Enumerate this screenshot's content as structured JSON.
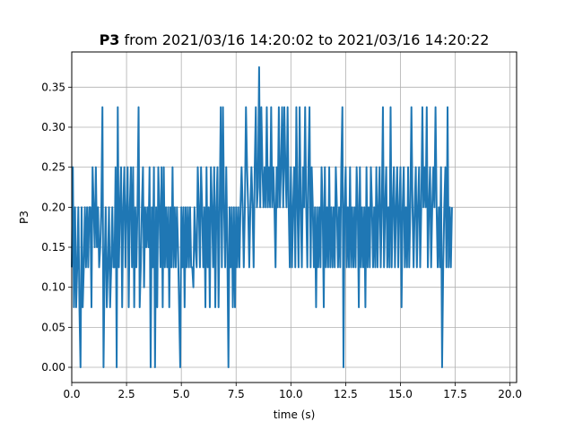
{
  "chart_data": {
    "type": "line",
    "title_bold": "P3",
    "title_rest": " from 2021/03/16 14:20:02 to 2021/03/16 14:20:22",
    "xlabel": "time (s)",
    "ylabel": "P3",
    "xlim": [
      0,
      20.3
    ],
    "ylim": [
      -0.019,
      0.394
    ],
    "x_ticks": [
      0,
      2.5,
      5,
      7.5,
      10,
      12.5,
      15,
      17.5,
      20
    ],
    "x_tick_labels": [
      "0.0",
      "2.5",
      "5.0",
      "7.5",
      "10.0",
      "12.5",
      "15.0",
      "17.5",
      "20.0"
    ],
    "y_ticks": [
      0,
      0.05,
      0.1,
      0.15,
      0.2,
      0.25,
      0.3,
      0.35
    ],
    "y_tick_labels": [
      "0.00",
      "0.05",
      "0.10",
      "0.15",
      "0.20",
      "0.25",
      "0.30",
      "0.35"
    ],
    "grid": true,
    "line_color": "#1f77b4",
    "series": [
      {
        "dt": 0.05,
        "values": [
          0.125,
          0.25,
          0.075,
          0.2,
          0.075,
          0.125,
          0.2,
          0.075,
          0.0,
          0.2,
          0.075,
          0.125,
          0.2,
          0.125,
          0.2,
          0.125,
          0.2,
          0.2,
          0.075,
          0.25,
          0.2,
          0.15,
          0.25,
          0.15,
          0.2,
          0.125,
          0.15,
          0.2,
          0.325,
          0.0,
          0.125,
          0.2,
          0.075,
          0.125,
          0.2,
          0.075,
          0.125,
          0.2,
          0.125,
          0.125,
          0.25,
          0.0,
          0.325,
          0.125,
          0.2,
          0.25,
          0.075,
          0.2,
          0.25,
          0.125,
          0.2,
          0.25,
          0.075,
          0.2,
          0.25,
          0.125,
          0.25,
          0.075,
          0.2,
          0.125,
          0.2,
          0.325,
          0.075,
          0.125,
          0.2,
          0.25,
          0.1,
          0.2,
          0.15,
          0.2,
          0.15,
          0.25,
          0.0,
          0.2,
          0.125,
          0.25,
          0.0,
          0.2,
          0.075,
          0.25,
          0.2,
          0.125,
          0.25,
          0.075,
          0.25,
          0.125,
          0.2,
          0.125,
          0.2,
          0.075,
          0.2,
          0.125,
          0.25,
          0.125,
          0.2,
          0.125,
          0.2,
          0.15,
          0.075,
          0.0,
          0.2,
          0.125,
          0.2,
          0.075,
          0.2,
          0.125,
          0.2,
          0.125,
          0.2,
          0.125,
          0.125,
          0.1,
          0.2,
          0.15,
          0.125,
          0.25,
          0.2,
          0.125,
          0.25,
          0.2,
          0.125,
          0.2,
          0.075,
          0.25,
          0.125,
          0.2,
          0.075,
          0.25,
          0.2,
          0.125,
          0.25,
          0.075,
          0.2,
          0.25,
          0.075,
          0.2,
          0.325,
          0.125,
          0.325,
          0.2,
          0.125,
          0.25,
          0.15,
          0.0,
          0.2,
          0.125,
          0.2,
          0.075,
          0.2,
          0.075,
          0.2,
          0.125,
          0.2,
          0.125,
          0.2,
          0.25,
          0.2,
          0.125,
          0.2,
          0.325,
          0.25,
          0.2,
          0.125,
          0.2,
          0.25,
          0.2,
          0.125,
          0.25,
          0.325,
          0.2,
          0.225,
          0.375,
          0.2,
          0.325,
          0.25,
          0.2,
          0.25,
          0.2,
          0.325,
          0.2,
          0.25,
          0.2,
          0.325,
          0.2,
          0.25,
          0.2,
          0.125,
          0.25,
          0.2,
          0.325,
          0.2,
          0.25,
          0.325,
          0.2,
          0.325,
          0.25,
          0.2,
          0.325,
          0.2,
          0.125,
          0.25,
          0.125,
          0.2,
          0.25,
          0.125,
          0.325,
          0.2,
          0.125,
          0.325,
          0.2,
          0.125,
          0.25,
          0.2,
          0.325,
          0.2,
          0.125,
          0.25,
          0.325,
          0.125,
          0.25,
          0.2,
          0.125,
          0.2,
          0.075,
          0.2,
          0.125,
          0.2,
          0.125,
          0.25,
          0.2,
          0.075,
          0.25,
          0.125,
          0.2,
          0.125,
          0.25,
          0.125,
          0.2,
          0.125,
          0.2,
          0.125,
          0.25,
          0.2,
          0.125,
          0.2,
          0.125,
          0.25,
          0.325,
          0.0,
          0.2,
          0.25,
          0.125,
          0.2,
          0.125,
          0.25,
          0.125,
          0.2,
          0.125,
          0.2,
          0.125,
          0.25,
          0.2,
          0.075,
          0.25,
          0.125,
          0.2,
          0.125,
          0.2,
          0.075,
          0.25,
          0.125,
          0.2,
          0.125,
          0.25,
          0.2,
          0.125,
          0.2,
          0.125,
          0.25,
          0.125,
          0.2,
          0.25,
          0.125,
          0.2,
          0.325,
          0.125,
          0.2,
          0.25,
          0.125,
          0.2,
          0.125,
          0.325,
          0.125,
          0.2,
          0.25,
          0.125,
          0.2,
          0.25,
          0.125,
          0.2,
          0.25,
          0.075,
          0.2,
          0.25,
          0.125,
          0.2,
          0.125,
          0.25,
          0.125,
          0.2,
          0.325,
          0.2,
          0.125,
          0.2,
          0.25,
          0.125,
          0.2,
          0.25,
          0.125,
          0.2,
          0.325,
          0.2,
          0.25,
          0.2,
          0.325,
          0.125,
          0.2,
          0.25,
          0.125,
          0.2,
          0.25,
          0.2,
          0.325,
          0.2,
          0.125,
          0.2,
          0.125,
          0.25,
          0.0,
          0.125,
          0.2,
          0.25,
          0.125,
          0.325,
          0.125,
          0.2,
          0.125,
          0.2
        ]
      }
    ]
  }
}
